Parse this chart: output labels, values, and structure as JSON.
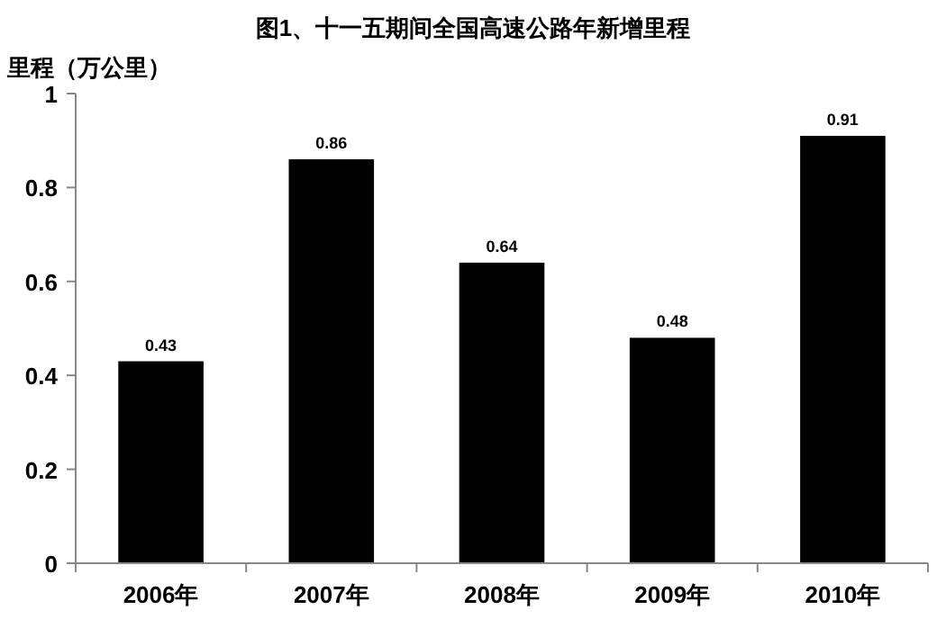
{
  "chart_data": {
    "type": "bar",
    "title": "图1、十一五期间全国高速公路年新增里程",
    "ylabel": "里程（万公里）",
    "categories": [
      "2006年",
      "2007年",
      "2008年",
      "2009年",
      "2010年"
    ],
    "values": [
      0.43,
      0.86,
      0.64,
      0.48,
      0.91
    ],
    "color": "#000000",
    "ylim": [
      0,
      1
    ],
    "yticks": [
      0,
      0.2,
      0.4,
      0.6,
      0.8,
      1
    ],
    "data_labels": true,
    "grid": false
  }
}
